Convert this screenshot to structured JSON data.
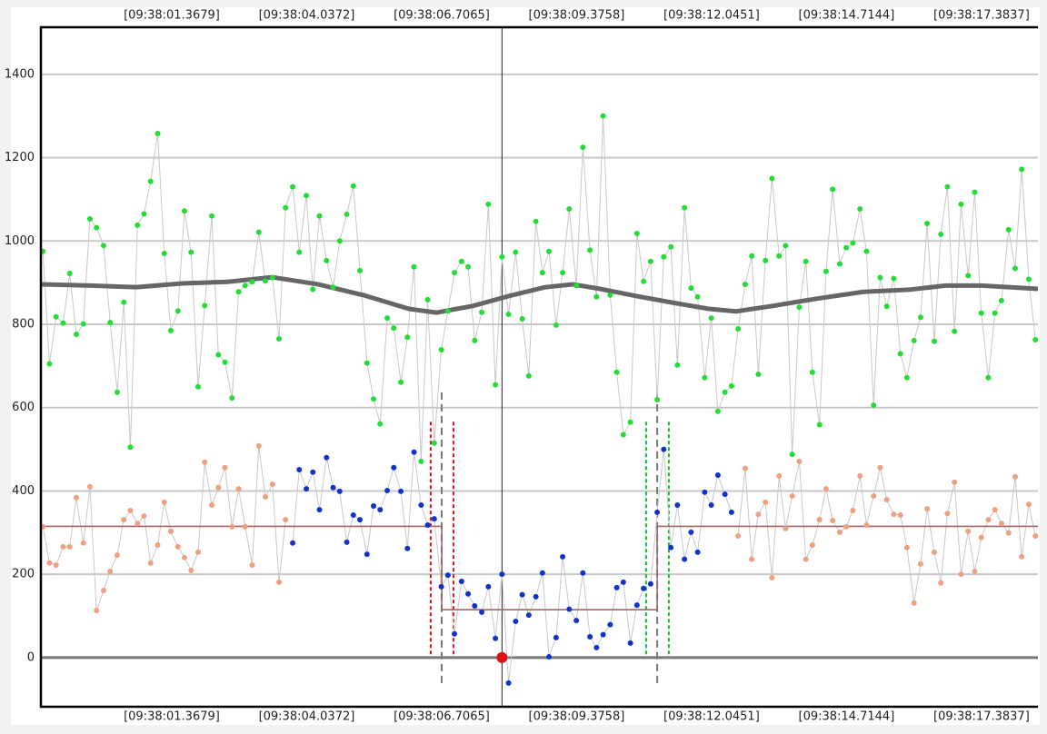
{
  "chart_data": {
    "type": "scatter",
    "xlim": [
      -1.22,
      18.5
    ],
    "ylim": [
      -118,
      1513
    ],
    "xticks": [
      {
        "value": 1.3679,
        "label": "[09:38:01.3679]"
      },
      {
        "value": 4.0372,
        "label": "[09:38:04.0372]"
      },
      {
        "value": 6.7065,
        "label": "[09:38:06.7065]"
      },
      {
        "value": 9.3758,
        "label": "[09:38:09.3758]"
      },
      {
        "value": 12.0451,
        "label": "[09:38:12.0451]"
      },
      {
        "value": 14.7144,
        "label": "[09:38:14.7144]"
      },
      {
        "value": 17.3837,
        "label": "[09:38:17.3837]"
      }
    ],
    "yticks": [
      0,
      200,
      400,
      600,
      800,
      1000,
      1200,
      1400
    ],
    "grid": true,
    "grid_color": "#c8c8c8",
    "zero_line_color": "#777777",
    "x": [
      -1.18,
      -1.05,
      -0.92,
      -0.78,
      -0.65,
      -0.52,
      -0.38,
      -0.25,
      -0.12,
      0.02,
      0.15,
      0.29,
      0.42,
      0.55,
      0.69,
      0.82,
      0.95,
      1.09,
      1.22,
      1.35,
      1.49,
      1.62,
      1.75,
      1.89,
      2.02,
      2.16,
      2.29,
      2.42,
      2.56,
      2.69,
      2.82,
      2.96,
      3.09,
      3.22,
      3.36,
      3.49,
      3.62,
      3.76,
      3.89,
      4.03,
      4.16,
      4.29,
      4.43,
      4.56,
      4.69,
      4.83,
      4.96,
      5.09,
      5.23,
      5.36,
      5.49,
      5.63,
      5.76,
      5.9,
      6.03,
      6.16,
      6.3,
      6.43,
      6.56,
      6.7,
      6.83,
      6.96,
      7.1,
      7.23,
      7.36,
      7.5,
      7.63,
      7.77,
      7.9,
      8.03,
      8.17,
      8.3,
      8.43,
      8.57,
      8.7,
      8.83,
      8.97,
      9.1,
      9.23,
      9.37,
      9.5,
      9.64,
      9.77,
      9.9,
      10.04,
      10.17,
      10.3,
      10.44,
      10.57,
      10.7,
      10.84,
      10.97,
      11.1,
      11.24,
      11.37,
      11.51,
      11.64,
      11.77,
      11.91,
      12.04,
      12.17,
      12.31,
      12.44,
      12.57,
      12.71,
      12.84,
      12.97,
      13.11,
      13.24,
      13.38,
      13.51,
      13.64,
      13.78,
      13.91,
      14.04,
      14.18,
      14.31,
      14.44,
      14.58,
      14.71,
      14.84,
      14.98,
      15.11,
      15.25,
      15.38,
      15.51,
      15.65,
      15.78,
      15.91,
      16.05,
      16.18,
      16.31,
      16.45,
      16.58,
      16.71,
      16.85,
      16.98,
      17.12,
      17.25,
      17.38,
      17.52,
      17.65,
      17.78,
      17.92,
      18.05,
      18.18,
      18.32,
      18.45
    ],
    "series": [
      {
        "color": "#22dd33",
        "line_color": "#c8c8c8",
        "line_width": 1,
        "marker": true,
        "values": [
          975,
          705,
          818,
          803,
          922,
          776,
          801,
          1053,
          1032,
          989,
          804,
          637,
          853,
          505,
          1038,
          1065,
          1143,
          1258,
          970,
          785,
          832,
          1072,
          973,
          650,
          845,
          1060,
          727,
          709,
          623,
          878,
          893,
          902,
          1021,
          904,
          912,
          765,
          1080,
          1130,
          973,
          1109,
          884,
          1060,
          953,
          889,
          1000,
          1064,
          1132,
          929,
          707,
          621,
          561,
          815,
          791,
          661,
          769,
          938,
          471,
          859,
          515,
          739,
          832,
          924,
          951,
          938,
          761,
          829,
          1088,
          655,
          962,
          824,
          973,
          813,
          676,
          1047,
          924,
          975,
          798,
          924,
          1077,
          893,
          1225,
          978,
          866,
          1300,
          870,
          685,
          535,
          565,
          1018,
          903,
          951,
          619,
          962,
          986,
          702,
          1080,
          887,
          866,
          672,
          815,
          591,
          637,
          652,
          789,
          896,
          964,
          680,
          953,
          1150,
          964,
          989,
          488,
          841,
          951,
          685,
          559,
          927,
          1124,
          945,
          984,
          995,
          1077,
          975,
          606,
          912,
          843,
          910,
          729,
          672,
          761,
          817,
          1042,
          759,
          1016,
          1130,
          783,
          1088,
          917,
          1117,
          827,
          672,
          827,
          857,
          1027,
          934,
          1172,
          908,
          763
        ]
      },
      {
        "color": "#f0a07e",
        "line_color": "#c8c8c8",
        "line_width": 1,
        "marker": true,
        "values": [
          314,
          227,
          222,
          266,
          266,
          384,
          275,
          410,
          113,
          161,
          207,
          246,
          331,
          353,
          322,
          340,
          227,
          270,
          373,
          303,
          266,
          240,
          209,
          253,
          469,
          366,
          408,
          456,
          314,
          405,
          314,
          222,
          508,
          386,
          416,
          181,
          331,
          null,
          null,
          null,
          null,
          null,
          null,
          null,
          null,
          null,
          null,
          null,
          null,
          null,
          null,
          null,
          null,
          null,
          null,
          null,
          null,
          null,
          null,
          null,
          null,
          null,
          null,
          null,
          null,
          null,
          null,
          null,
          null,
          null,
          null,
          null,
          null,
          null,
          null,
          null,
          null,
          null,
          null,
          null,
          null,
          null,
          null,
          null,
          null,
          null,
          null,
          null,
          null,
          null,
          null,
          null,
          null,
          null,
          null,
          null,
          null,
          null,
          null,
          null,
          null,
          null,
          null,
          292,
          454,
          236,
          344,
          373,
          192,
          436,
          310,
          388,
          471,
          236,
          270,
          331,
          405,
          329,
          301,
          314,
          353,
          436,
          318,
          388,
          456,
          379,
          344,
          342,
          264,
          131,
          225,
          357,
          253,
          179,
          346,
          421,
          200,
          303,
          207,
          288,
          331,
          355,
          322,
          299,
          434,
          242,
          368,
          292
        ]
      },
      {
        "color": "#1133cc",
        "line_color": "#c8c8c8",
        "line_width": 1,
        "marker": true,
        "values": [
          null,
          null,
          null,
          null,
          null,
          null,
          null,
          null,
          null,
          null,
          null,
          null,
          null,
          null,
          null,
          null,
          null,
          null,
          null,
          null,
          null,
          null,
          null,
          null,
          null,
          null,
          null,
          null,
          null,
          null,
          null,
          null,
          null,
          null,
          null,
          null,
          null,
          275,
          451,
          405,
          445,
          355,
          480,
          408,
          399,
          277,
          342,
          331,
          248,
          364,
          355,
          401,
          456,
          399,
          262,
          493,
          366,
          318,
          333,
          170,
          198,
          57,
          183,
          153,
          124,
          109,
          170,
          46,
          200,
          -61,
          87,
          151,
          102,
          146,
          203,
          2,
          48,
          242,
          116,
          89,
          203,
          50,
          24,
          55,
          79,
          168,
          181,
          35,
          126,
          166,
          177,
          349,
          500,
          264,
          366,
          236,
          301,
          253,
          397,
          366,
          438,
          392,
          349,
          null,
          null,
          null,
          null,
          null,
          null,
          null,
          null,
          null,
          null,
          null,
          null,
          null,
          null,
          null,
          null,
          null,
          null,
          null,
          null,
          null,
          null,
          null,
          null,
          null,
          null,
          null,
          null,
          null,
          null,
          null,
          null,
          null,
          null,
          null,
          null,
          null,
          null,
          null,
          null,
          null
        ]
      },
      {
        "color": "#666666",
        "line_color": "#666666",
        "line_width": 5,
        "marker": false,
        "x": [
          -1.22,
          -0.23,
          0.67,
          1.57,
          2.47,
          3.36,
          4.26,
          5.16,
          6.06,
          6.6,
          7.32,
          8.04,
          8.75,
          9.3,
          9.84,
          10.55,
          11.27,
          11.99,
          12.53,
          13.25,
          14.15,
          15.05,
          15.95,
          16.67,
          17.39,
          18.5
        ],
        "values": [
          896,
          893,
          889,
          898,
          902,
          913,
          896,
          870,
          837,
          828,
          844,
          868,
          889,
          896,
          885,
          868,
          852,
          837,
          831,
          844,
          862,
          878,
          883,
          893,
          893,
          885
        ]
      },
      {
        "color": "#a06868",
        "line_color": "#a06868",
        "line_width": 1.6,
        "marker": false,
        "x": [
          -1.22,
          6.71,
          6.71,
          10.97,
          10.97,
          18.5
        ],
        "values": [
          315,
          315,
          115,
          115,
          315,
          315
        ]
      },
      {
        "color": "#dd1111",
        "line_color": "#dd1111",
        "line_width": 0,
        "marker": true,
        "marker_size": 6,
        "x": [
          7.9
        ],
        "values": [
          0
        ]
      }
    ],
    "vlines": [
      {
        "x": 6.7065,
        "y": [
          -61,
          643
        ],
        "color": "#777777",
        "dash": "8,5"
      },
      {
        "x": 10.97,
        "y": [
          -61,
          643
        ],
        "color": "#777777",
        "dash": "8,5"
      },
      {
        "x": 6.49,
        "y": [
          8,
          570
        ],
        "color": "#dd1111",
        "dash": "4,3"
      },
      {
        "x": 6.94,
        "y": [
          8,
          570
        ],
        "color": "#dd1111",
        "dash": "4,3"
      },
      {
        "x": 10.75,
        "y": [
          8,
          570
        ],
        "color": "#11bb22",
        "dash": "4,3"
      },
      {
        "x": 11.2,
        "y": [
          8,
          570
        ],
        "color": "#11bb22",
        "dash": "4,3"
      },
      {
        "x": 7.9,
        "color": "#222222",
        "dash": "none"
      }
    ]
  }
}
